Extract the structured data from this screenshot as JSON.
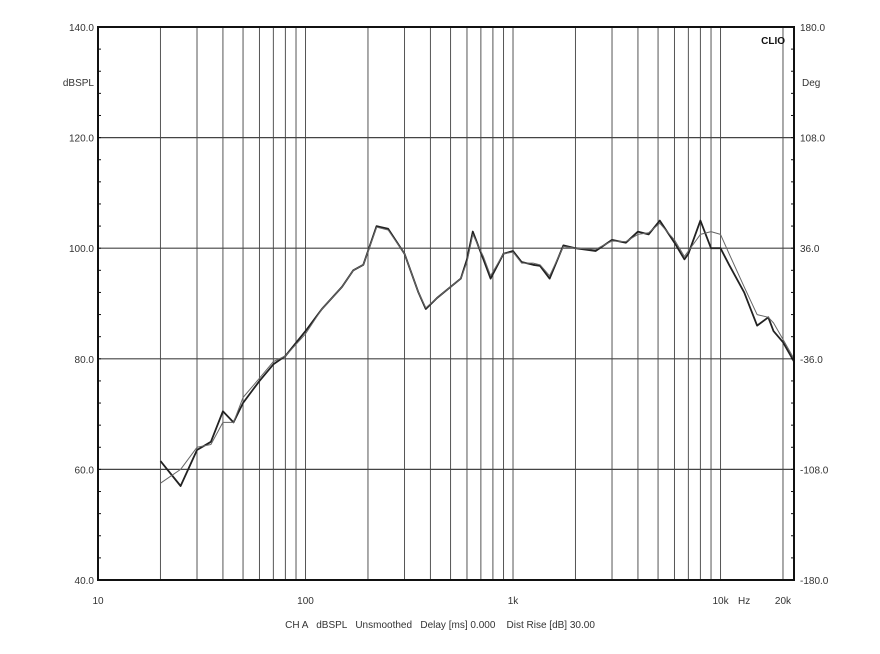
{
  "chart_data": {
    "type": "line",
    "brand": "CLIO",
    "ylabel": "dBSPL",
    "ylabel_right": "Deg",
    "xunit": "Hz",
    "xscale": "log",
    "xlim": [
      10,
      22600
    ],
    "ylim": [
      40,
      140
    ],
    "ylim_right": [
      -180,
      180
    ],
    "grid": true,
    "x_tick_labels": [
      {
        "value": 10,
        "label": "10"
      },
      {
        "value": 100,
        "label": "100"
      },
      {
        "value": 1000,
        "label": "1k"
      },
      {
        "value": 10000,
        "label": "10k"
      },
      {
        "value": 20000,
        "label": "20k"
      }
    ],
    "x_gridlines": [
      20,
      30,
      40,
      50,
      60,
      70,
      80,
      90,
      100,
      200,
      300,
      400,
      500,
      600,
      700,
      800,
      900,
      1000,
      2000,
      3000,
      4000,
      5000,
      6000,
      7000,
      8000,
      9000,
      10000,
      20000
    ],
    "y_ticks": [
      {
        "value": 140,
        "label": "140.0"
      },
      {
        "value": 120,
        "label": "120.0"
      },
      {
        "value": 100,
        "label": "100.0"
      },
      {
        "value": 80,
        "label": "80.0"
      },
      {
        "value": 60,
        "label": "60.0"
      },
      {
        "value": 40,
        "label": "40.0"
      }
    ],
    "y_right_ticks": [
      {
        "value": 180,
        "label": "180.0"
      },
      {
        "value": 108,
        "label": "108.0"
      },
      {
        "value": 36,
        "label": "36.0"
      },
      {
        "value": -36,
        "label": "-36.0"
      },
      {
        "value": -108,
        "label": "-108.0"
      },
      {
        "value": -180,
        "label": "-180.0"
      }
    ],
    "footer": "CH A   dBSPL   Unsmoothed   Delay [ms] 0.000    Dist Rise [dB] 30.00",
    "x": [
      20,
      25,
      30,
      35,
      40,
      45,
      50,
      60,
      70,
      80,
      100,
      120,
      150,
      170,
      190,
      220,
      250,
      300,
      350,
      380,
      430,
      500,
      560,
      600,
      640,
      720,
      780,
      900,
      1000,
      1100,
      1250,
      1350,
      1500,
      1750,
      2000,
      2500,
      3000,
      3500,
      4000,
      4500,
      5100,
      6000,
      6700,
      7000,
      8000,
      9000,
      10000,
      11000,
      13000,
      15000,
      17000,
      18000,
      20000,
      22600
    ],
    "series": [
      {
        "style": "thick",
        "color": "#222222",
        "values": [
          61.5,
          57,
          63.5,
          65,
          70.5,
          68.5,
          72,
          76,
          79,
          80.5,
          85,
          89,
          93,
          96,
          97,
          104,
          103.5,
          99,
          92,
          89,
          91,
          93,
          94.5,
          98,
          103,
          98,
          94.5,
          99,
          99.5,
          97.5,
          97,
          96.8,
          94.5,
          100.5,
          100,
          99.5,
          101.5,
          101,
          103,
          102.5,
          105,
          101,
          98,
          99,
          105,
          100,
          100,
          97,
          92,
          86,
          87.5,
          85,
          83,
          79.5
        ]
      },
      {
        "style": "thin",
        "color": "#666666",
        "values": [
          57.5,
          60,
          64,
          64.5,
          68.5,
          68.5,
          73,
          76.5,
          79.5,
          80.5,
          84.5,
          89,
          93,
          96,
          97,
          103.8,
          103.3,
          99,
          92,
          89.2,
          91,
          93,
          94.5,
          97.5,
          102.5,
          98.5,
          95,
          99,
          99.3,
          97.3,
          97.3,
          97,
          95,
          100.3,
          100,
          99.8,
          101.3,
          101.2,
          102.5,
          102.8,
          104.5,
          101.5,
          98.5,
          99.5,
          102.5,
          103,
          102.5,
          99,
          93,
          88,
          87.5,
          86.5,
          83.5,
          80
        ]
      }
    ]
  }
}
